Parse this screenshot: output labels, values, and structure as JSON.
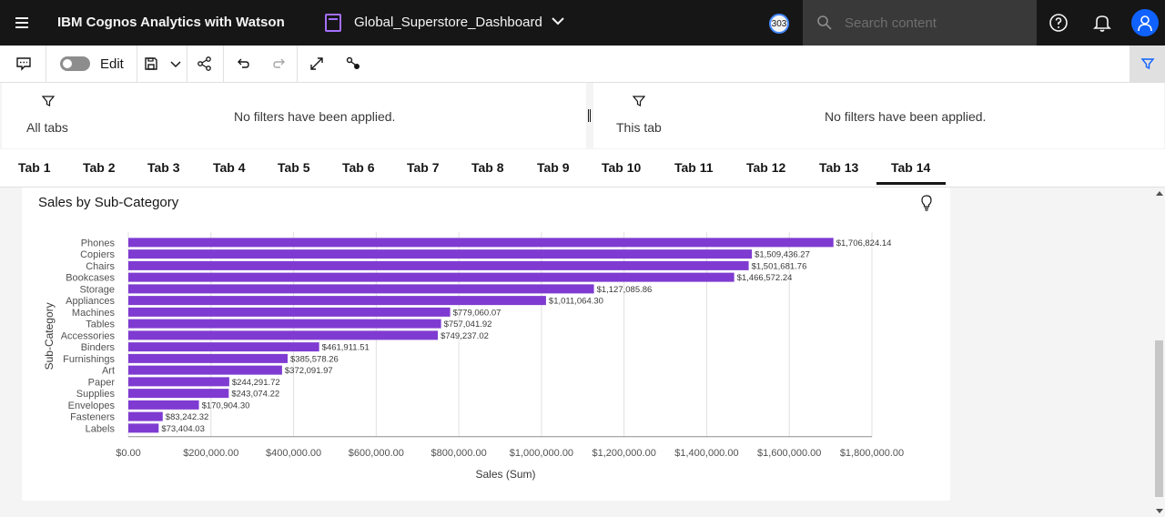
{
  "header": {
    "app_title": "IBM Cognos Analytics with Watson",
    "dashboard_name": "Global_Superstore_Dashboard",
    "badge": "303",
    "search_placeholder": "Search content"
  },
  "toolbar": {
    "edit_label": "Edit",
    "edit_toggle_on": false
  },
  "filters": {
    "all_tabs_label": "All tabs",
    "all_tabs_message": "No filters have been applied.",
    "this_tab_label": "This tab",
    "this_tab_message": "No filters have been applied."
  },
  "tabs": [
    {
      "label": "Tab 1"
    },
    {
      "label": "Tab 2"
    },
    {
      "label": "Tab 3"
    },
    {
      "label": "Tab 4"
    },
    {
      "label": "Tab 5"
    },
    {
      "label": "Tab 6"
    },
    {
      "label": "Tab 7"
    },
    {
      "label": "Tab 8"
    },
    {
      "label": "Tab 9"
    },
    {
      "label": "Tab 10"
    },
    {
      "label": "Tab 11"
    },
    {
      "label": "Tab 12"
    },
    {
      "label": "Tab 13"
    },
    {
      "label": "Tab 14"
    }
  ],
  "active_tab": "Tab 14",
  "colors": {
    "bar": "#7f3bd1",
    "topbar": "#161616",
    "accent": "#0f62fe"
  },
  "chart_data": {
    "type": "bar",
    "orientation": "horizontal",
    "title": "Sales by Sub-Category",
    "xlabel": "Sales (Sum)",
    "ylabel": "Sub-Category",
    "xlim": [
      0,
      1800000
    ],
    "xticks": [
      {
        "value": 0,
        "label": "$0.00"
      },
      {
        "value": 200000,
        "label": "$200,000.00"
      },
      {
        "value": 400000,
        "label": "$400,000.00"
      },
      {
        "value": 600000,
        "label": "$600,000.00"
      },
      {
        "value": 800000,
        "label": "$800,000.00"
      },
      {
        "value": 1000000,
        "label": "$1,000,000.00"
      },
      {
        "value": 1200000,
        "label": "$1,200,000.00"
      },
      {
        "value": 1400000,
        "label": "$1,400,000.00"
      },
      {
        "value": 1600000,
        "label": "$1,600,000.00"
      },
      {
        "value": 1800000,
        "label": "$1,800,000.00"
      }
    ],
    "grid": true,
    "categories": [
      "Phones",
      "Copiers",
      "Chairs",
      "Bookcases",
      "Storage",
      "Appliances",
      "Machines",
      "Tables",
      "Accessories",
      "Binders",
      "Furnishings",
      "Art",
      "Paper",
      "Supplies",
      "Envelopes",
      "Fasteners",
      "Labels"
    ],
    "values": [
      1706824.14,
      1509436.27,
      1501681.76,
      1466572.24,
      1127085.86,
      1011064.3,
      779060.07,
      757041.92,
      749237.02,
      461911.51,
      385578.26,
      372091.97,
      244291.72,
      243074.22,
      170904.3,
      83242.32,
      73404.03
    ],
    "data_labels": [
      "$1,706,824.14",
      "$1,509,436.27",
      "$1,501,681.76",
      "$1,466,572.24",
      "$1,127,085.86",
      "$1,011,064.30",
      "$779,060.07",
      "$757,041.92",
      "$749,237.02",
      "$461,911.51",
      "$385,578.26",
      "$372,091.97",
      "$244,291.72",
      "$243,074.22",
      "$170,904.30",
      "$83,242.32",
      "$73,404.03"
    ]
  }
}
